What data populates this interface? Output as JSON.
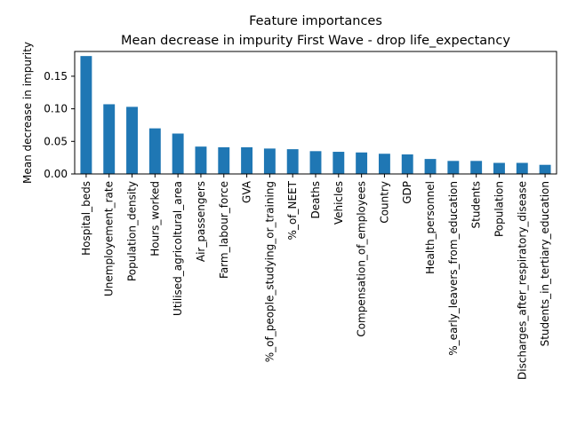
{
  "chart_data": {
    "type": "bar",
    "title": "Feature importances",
    "subtitle": "Mean decrease in impurity First Wave - drop life_expectancy",
    "xlabel": "",
    "ylabel": "Mean decrease in impurity",
    "ylim": [
      0,
      0.188
    ],
    "yticks": [
      0.0,
      0.05,
      0.1,
      0.15
    ],
    "ytick_labels": [
      "0.00",
      "0.05",
      "0.10",
      "0.15"
    ],
    "grid": false,
    "bar_color": "#1f77b4",
    "categories": [
      "Hospital_beds",
      "Unemployement_rate",
      "Population_density",
      "Hours_worked",
      "Utilised_agricoltural_area",
      "Air_passengers",
      "Farm_labour_force",
      "GVA",
      "%_of_people_studying_or_training",
      "%_of_NEET",
      "Deaths",
      "Vehicles",
      "Compensation_of_employees",
      "Country",
      "GDP",
      "Health_personnel",
      "%_early_leavers_from_education",
      "Students",
      "Population",
      "Discharges_after_respiratory_disease",
      "Students_in_tertiary_education"
    ],
    "values": [
      0.181,
      0.107,
      0.103,
      0.07,
      0.062,
      0.042,
      0.041,
      0.041,
      0.039,
      0.038,
      0.035,
      0.034,
      0.033,
      0.031,
      0.03,
      0.023,
      0.02,
      0.02,
      0.017,
      0.017,
      0.014
    ]
  }
}
